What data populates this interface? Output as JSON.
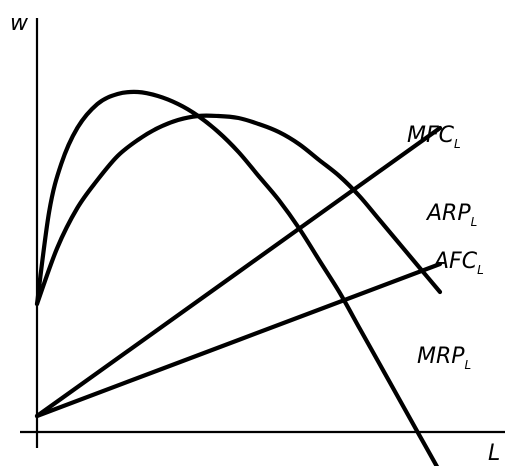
{
  "chart_data": {
    "type": "line",
    "xlabel": "L",
    "ylabel": "w",
    "xlim": [
      0,
      100
    ],
    "ylim": [
      0,
      100
    ],
    "grid": false,
    "colors": {
      "line": "#000000",
      "background": "#ffffff"
    },
    "series": [
      {
        "name": "MRP",
        "subscript": "L",
        "x": [
          0,
          3,
          6,
          10,
          15,
          20,
          25,
          30,
          35,
          40,
          45,
          50,
          55,
          60,
          65,
          70,
          75,
          80,
          85,
          90,
          95,
          100
        ],
        "y": [
          32,
          55,
          67,
          76,
          82,
          84.5,
          85,
          84,
          82,
          79,
          75,
          70,
          64,
          58,
          51,
          43,
          35,
          26,
          17,
          8,
          -1,
          -10
        ]
      },
      {
        "name": "ARP",
        "subscript": "L",
        "x": [
          0,
          5,
          10,
          15,
          20,
          25,
          30,
          35,
          40,
          45,
          50,
          55,
          60,
          65,
          70,
          75,
          80,
          85,
          90,
          95,
          100
        ],
        "y": [
          32,
          46,
          56,
          63,
          69,
          73,
          76,
          78,
          79,
          79,
          78.5,
          77,
          75,
          72,
          68,
          64,
          59,
          53,
          47,
          41,
          35
        ]
      },
      {
        "name": "MFC",
        "subscript": "L",
        "x": [
          0,
          50,
          100
        ],
        "y": [
          4,
          40,
          76
        ]
      },
      {
        "name": "AFC",
        "subscript": "L",
        "x": [
          0,
          50,
          100
        ],
        "y": [
          4,
          23,
          42
        ]
      }
    ]
  }
}
